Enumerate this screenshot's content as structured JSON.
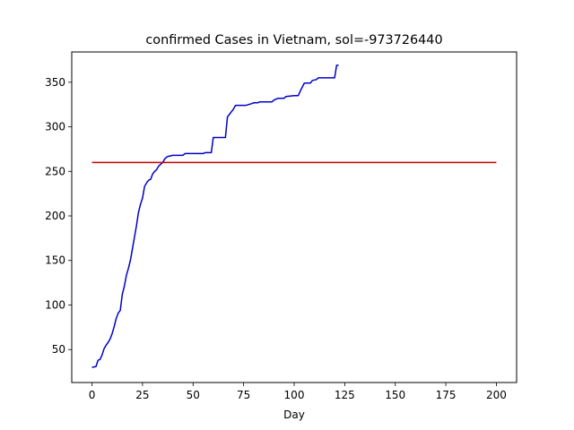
{
  "chart_data": {
    "type": "line",
    "title": "confirmed Cases in Vietnam, sol=-973726440",
    "xlabel": "Day",
    "ylabel": "",
    "xlim": [
      -10,
      210
    ],
    "ylim": [
      13,
      384
    ],
    "xticks": [
      0,
      25,
      50,
      75,
      100,
      125,
      150,
      175,
      200
    ],
    "yticks": [
      50,
      100,
      150,
      200,
      250,
      300,
      350
    ],
    "grid": false,
    "series": [
      {
        "color": "#0000cc",
        "x": [
          0,
          2,
          3,
          4,
          5,
          6,
          7,
          8,
          9,
          10,
          11,
          12,
          13,
          14,
          15,
          16,
          17,
          18,
          19,
          20,
          21,
          22,
          23,
          24,
          25,
          26,
          27,
          28,
          29,
          30,
          31,
          32,
          33,
          34,
          35,
          36,
          37,
          38,
          40,
          45,
          46,
          50,
          55,
          56,
          59,
          60,
          61,
          66,
          67,
          68,
          70,
          71,
          73,
          76,
          79,
          80,
          82,
          83,
          84,
          89,
          90,
          92,
          93,
          95,
          96,
          100,
          102,
          103,
          105,
          108,
          109,
          111,
          112,
          114,
          116,
          120,
          121,
          122
        ],
        "y": [
          30,
          31,
          38,
          39,
          44,
          51,
          55,
          58,
          62,
          68,
          76,
          85,
          91,
          94,
          112,
          121,
          133,
          141,
          150,
          163,
          176,
          189,
          204,
          213,
          220,
          233,
          237,
          240,
          241,
          247,
          250,
          252,
          256,
          258,
          260,
          264,
          266,
          267,
          268,
          268,
          270,
          270,
          270,
          271,
          271,
          288,
          288,
          288,
          311,
          314,
          320,
          324,
          324,
          324,
          326,
          327,
          327,
          328,
          328,
          328,
          330,
          332,
          332,
          332,
          334,
          335,
          335,
          340,
          349,
          349,
          352,
          353,
          355,
          355,
          355,
          355,
          369,
          369
        ]
      },
      {
        "color": "#cc0000",
        "x": [
          0,
          200
        ],
        "y": [
          260,
          260
        ]
      }
    ]
  }
}
